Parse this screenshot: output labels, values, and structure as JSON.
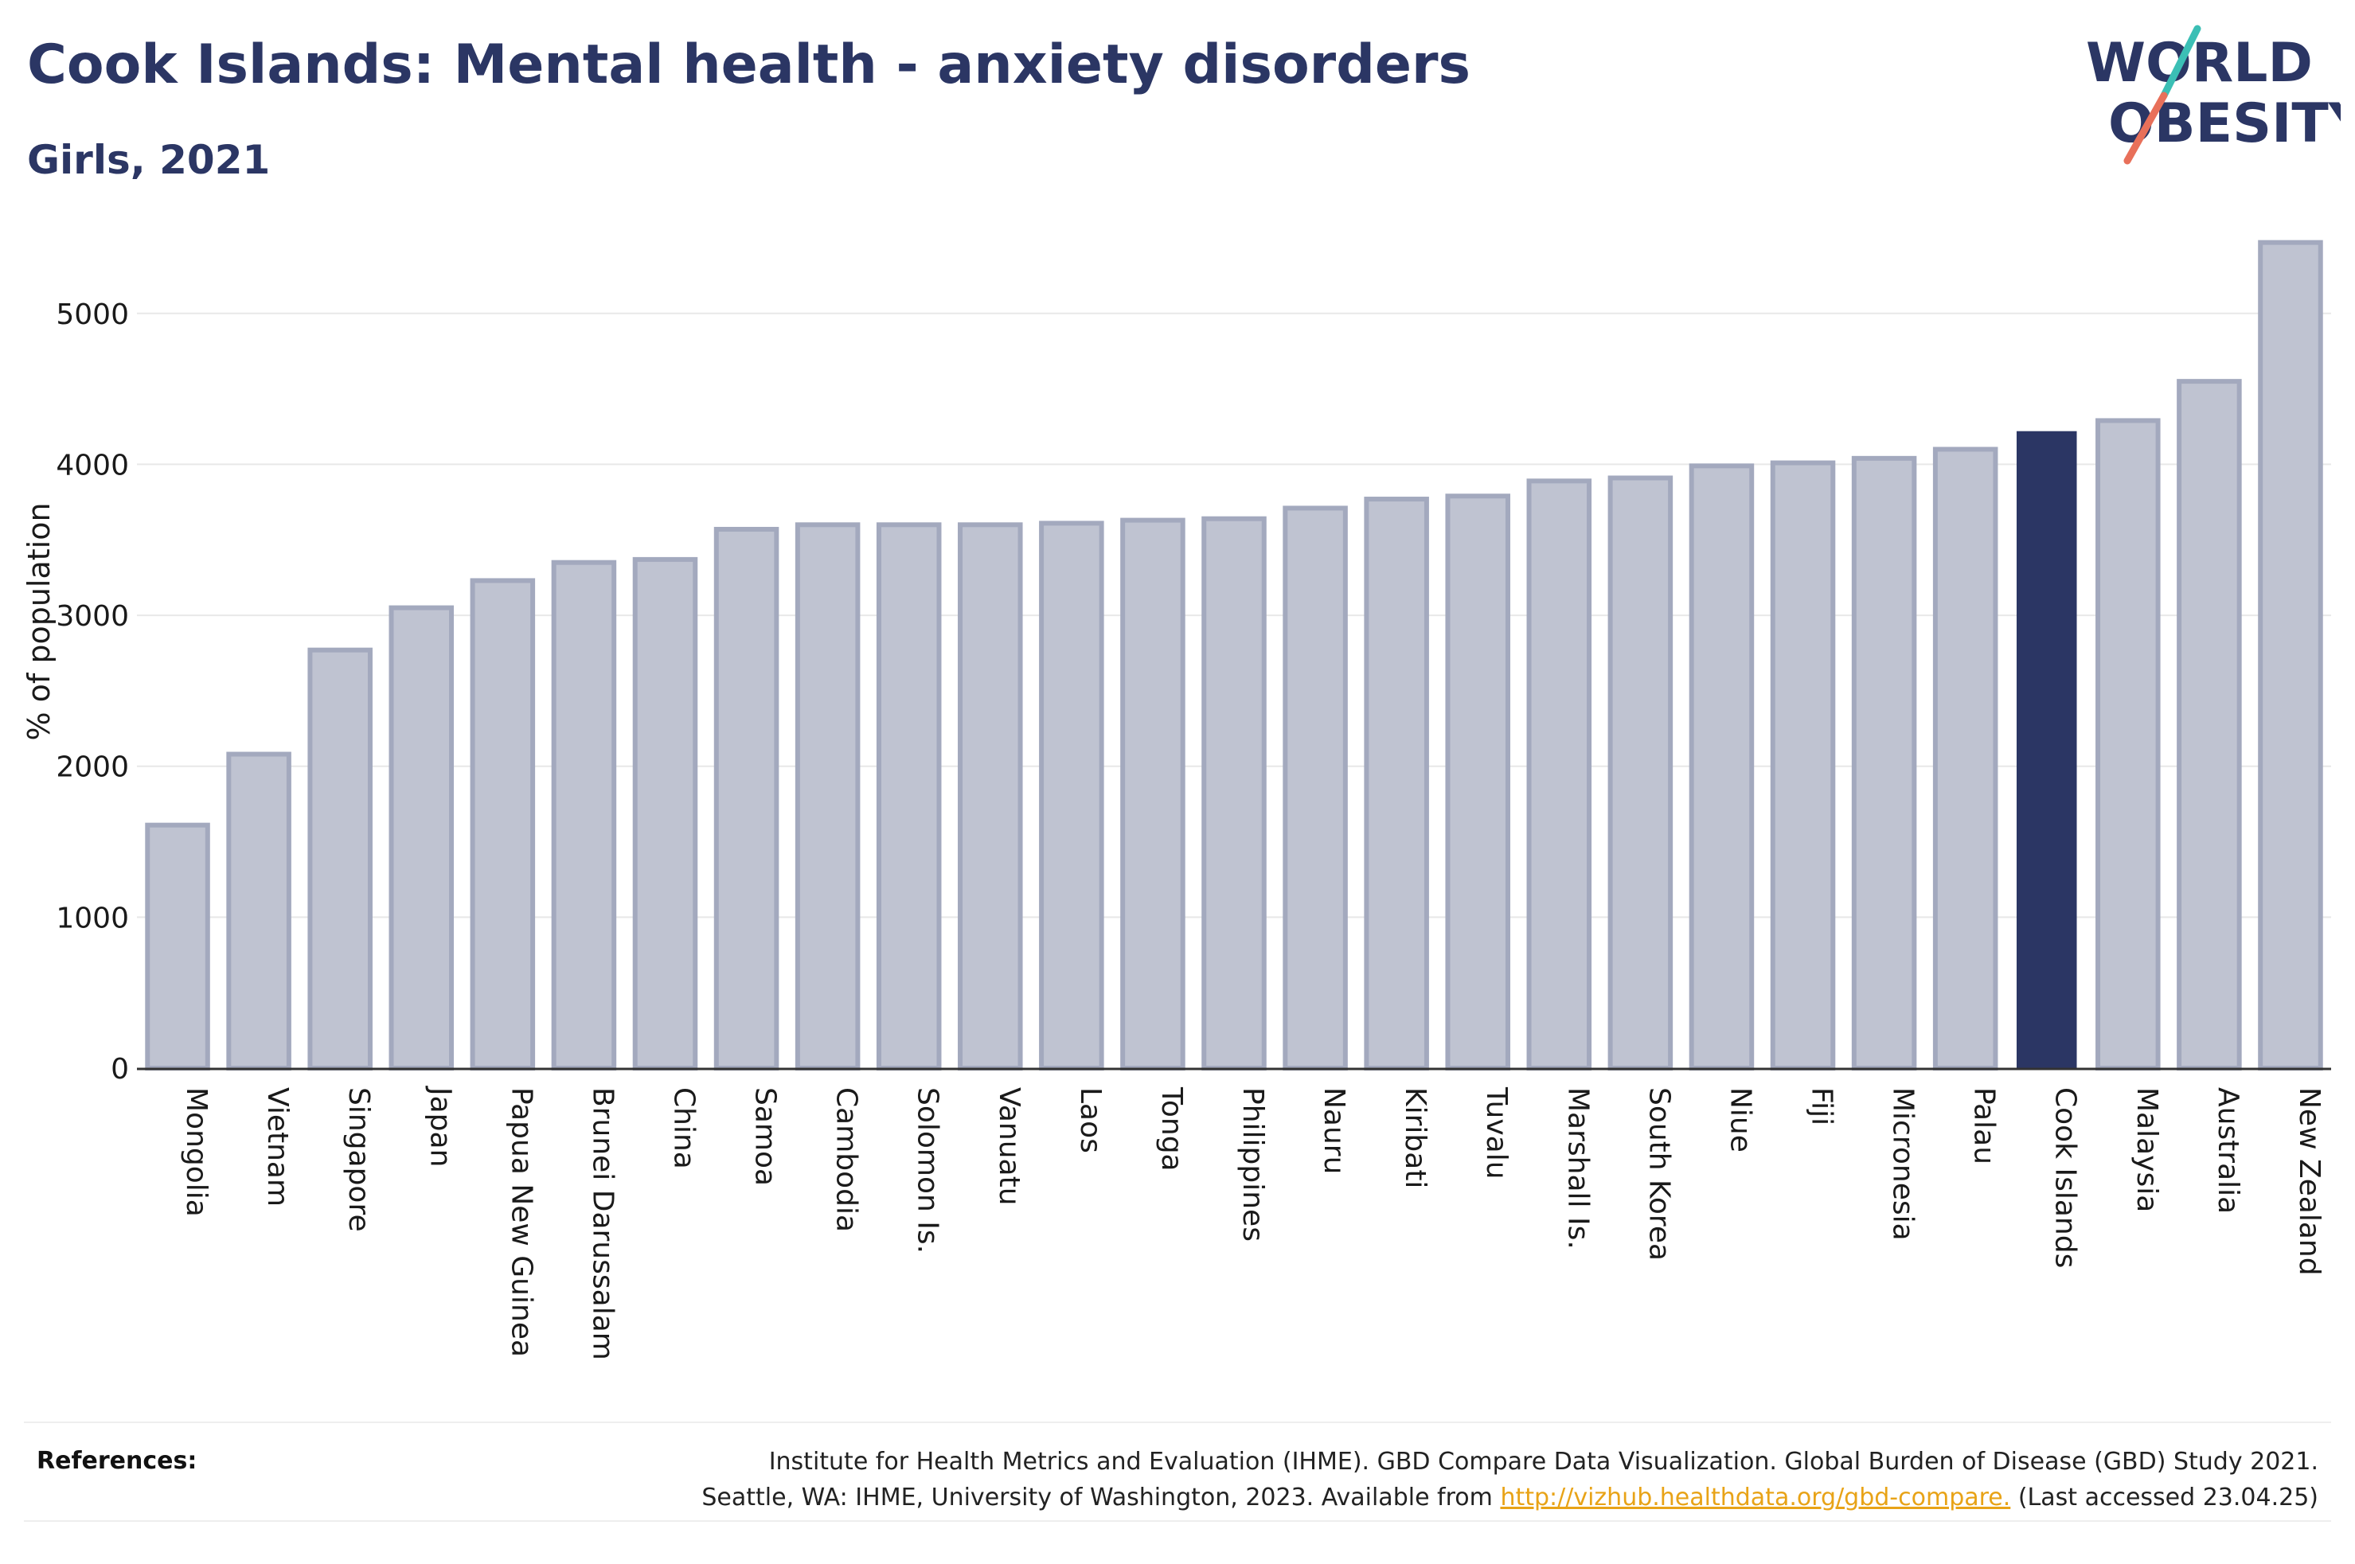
{
  "header": {
    "title": "Cook Islands: Mental health - anxiety disorders",
    "subtitle": "Girls, 2021"
  },
  "logo": {
    "line1": "WORLD",
    "line2": "OBESITY",
    "colors": {
      "text": "#2b3664",
      "slash_top": "#3bbfb5",
      "slash_bottom": "#e8705a"
    }
  },
  "colors": {
    "bar": "#bfc3d1",
    "bar_border": "#a3a9be",
    "highlight": "#2b3664",
    "grid": "#e8e8e8",
    "axis": "#333333"
  },
  "chart_data": {
    "type": "bar",
    "title": "Cook Islands: Mental health - anxiety disorders",
    "subtitle": "Girls, 2021",
    "xlabel": "",
    "ylabel": "% of population",
    "ylim": [
      0,
      5600
    ],
    "yticks": [
      0,
      1000,
      2000,
      3000,
      4000,
      5000
    ],
    "grid": true,
    "highlight": "Cook Islands",
    "categories": [
      "Mongolia",
      "Vietnam",
      "Singapore",
      "Japan",
      "Papua New Guinea",
      "Brunei Darussalam",
      "China",
      "Samoa",
      "Cambodia",
      "Solomon Is.",
      "Vanuatu",
      "Laos",
      "Tonga",
      "Philippines",
      "Nauru",
      "Kiribati",
      "Tuvalu",
      "Marshall Is.",
      "South Korea",
      "Niue",
      "Fiji",
      "Micronesia",
      "Palau",
      "Cook Islands",
      "Malaysia",
      "Australia",
      "New Zealand"
    ],
    "values": [
      1610,
      2080,
      2770,
      3050,
      3230,
      3350,
      3370,
      3570,
      3600,
      3600,
      3600,
      3610,
      3630,
      3640,
      3710,
      3770,
      3790,
      3890,
      3910,
      3990,
      4010,
      4040,
      4100,
      4220,
      4290,
      4550,
      5470
    ]
  },
  "references": {
    "label": "References:",
    "line1": "Institute for Health Metrics and Evaluation (IHME). GBD Compare Data Visualization. Global Burden of Disease (GBD) Study 2021.",
    "line2_before": "Seattle, WA: IHME, University of Washington, 2023. Available from",
    "link": "http://vizhub.healthdata.org/gbd-compare.",
    "line2_after": "(Last accessed 23.04.25)"
  }
}
